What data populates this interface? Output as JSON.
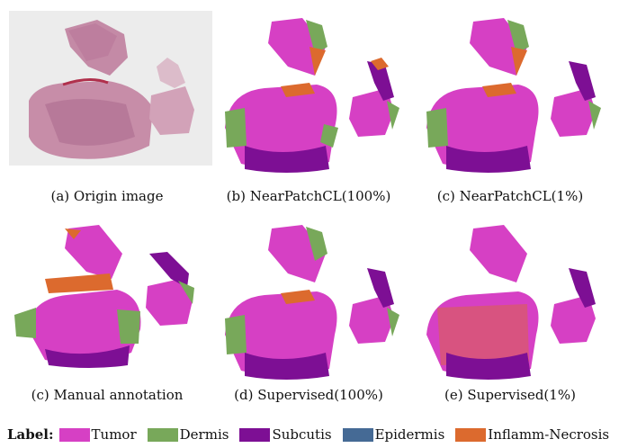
{
  "figure": {
    "captions": [
      "(a) Origin image",
      "(b) NearPatchCL(100%)",
      "(c) NearPatchCL(1%)",
      "(c) Manual annotation",
      "(d) Supervised(100%)",
      "(e) Supervised(1%)"
    ],
    "legend": {
      "title": "Label:",
      "items": [
        {
          "label": "Tumor",
          "color": "#d640c4"
        },
        {
          "label": "Dermis",
          "color": "#78a85a"
        },
        {
          "label": "Subcutis",
          "color": "#7d0f94"
        },
        {
          "label": "Epidermis",
          "color": "#456a95"
        },
        {
          "label": "Inflamm-Necrosis",
          "color": "#dc6a2e"
        }
      ]
    }
  }
}
